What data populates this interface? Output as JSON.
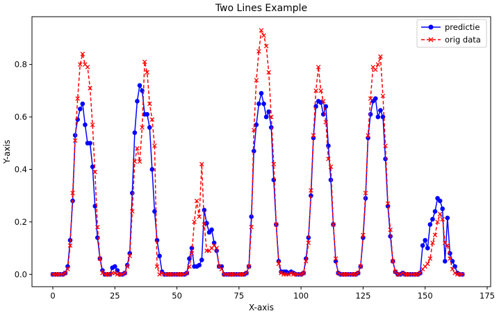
{
  "chart_data": {
    "type": "line",
    "title": "Two Lines Example",
    "xlabel": "X-axis",
    "ylabel": "Y-axis",
    "xlim": [
      -8.4,
      176.4
    ],
    "ylim": [
      -0.047,
      0.982
    ],
    "xticks": [
      0,
      25,
      50,
      75,
      100,
      125,
      150,
      175
    ],
    "yticks": [
      0.0,
      0.2,
      0.4,
      0.6,
      0.8
    ],
    "ytick_labels": [
      "0.0",
      "0.2",
      "0.4",
      "0.6",
      "0.8"
    ],
    "grid": false,
    "legend_position": "top-right",
    "series": [
      {
        "name": "predictie",
        "color": "#0000ff",
        "line_style": "solid",
        "marker": "circle",
        "points": [
          [
            0,
            0
          ],
          [
            1,
            0
          ],
          [
            2,
            0
          ],
          [
            3,
            0
          ],
          [
            4,
            0
          ],
          [
            5,
            0.005
          ],
          [
            6,
            0.03
          ],
          [
            7,
            0.13
          ],
          [
            8,
            0.28
          ],
          [
            9,
            0.53
          ],
          [
            10,
            0.59
          ],
          [
            11,
            0.63
          ],
          [
            12,
            0.65
          ],
          [
            13,
            0.57
          ],
          [
            14,
            0.5
          ],
          [
            15,
            0.5
          ],
          [
            16,
            0.41
          ],
          [
            17,
            0.26
          ],
          [
            18,
            0.14
          ],
          [
            19,
            0.06
          ],
          [
            20,
            0.015
          ],
          [
            21,
            0
          ],
          [
            22,
            0
          ],
          [
            23,
            0
          ],
          [
            24,
            0.025
          ],
          [
            25,
            0.03
          ],
          [
            26,
            0.015
          ],
          [
            27,
            0
          ],
          [
            28,
            0
          ],
          [
            29,
            0.005
          ],
          [
            30,
            0.035
          ],
          [
            31,
            0.08
          ],
          [
            32,
            0.31
          ],
          [
            33,
            0.54
          ],
          [
            34,
            0.66
          ],
          [
            35,
            0.72
          ],
          [
            36,
            0.7
          ],
          [
            37,
            0.61
          ],
          [
            38,
            0.61
          ],
          [
            39,
            0.56
          ],
          [
            40,
            0.4
          ],
          [
            41,
            0.24
          ],
          [
            42,
            0.13
          ],
          [
            43,
            0.07
          ],
          [
            44,
            0.01
          ],
          [
            45,
            0
          ],
          [
            46,
            0
          ],
          [
            47,
            0
          ],
          [
            48,
            0
          ],
          [
            49,
            0
          ],
          [
            50,
            0
          ],
          [
            51,
            0
          ],
          [
            52,
            0
          ],
          [
            53,
            0
          ],
          [
            54,
            0.005
          ],
          [
            55,
            0.06
          ],
          [
            56,
            0.1
          ],
          [
            57,
            0.03
          ],
          [
            58,
            0.03
          ],
          [
            59,
            0.035
          ],
          [
            60,
            0.055
          ],
          [
            61,
            0.245
          ],
          [
            62,
            0.195
          ],
          [
            63,
            0.16
          ],
          [
            64,
            0.17
          ],
          [
            65,
            0.12
          ],
          [
            66,
            0.09
          ],
          [
            67,
            0.03
          ],
          [
            68,
            0.03
          ],
          [
            69,
            0
          ],
          [
            70,
            0
          ],
          [
            71,
            0
          ],
          [
            72,
            0
          ],
          [
            73,
            0
          ],
          [
            74,
            0
          ],
          [
            75,
            0
          ],
          [
            76,
            0
          ],
          [
            77,
            0
          ],
          [
            78,
            0.005
          ],
          [
            79,
            0.03
          ],
          [
            80,
            0.22
          ],
          [
            81,
            0.47
          ],
          [
            82,
            0.57
          ],
          [
            83,
            0.65
          ],
          [
            84,
            0.69
          ],
          [
            85,
            0.65
          ],
          [
            86,
            0.6
          ],
          [
            87,
            0.62
          ],
          [
            88,
            0.56
          ],
          [
            89,
            0.36
          ],
          [
            90,
            0.19
          ],
          [
            91,
            0.05
          ],
          [
            92,
            0.01
          ],
          [
            93,
            0.01
          ],
          [
            94,
            0.01
          ],
          [
            95,
            0.005
          ],
          [
            96,
            0.01
          ],
          [
            97,
            0.005
          ],
          [
            98,
            0
          ],
          [
            99,
            0
          ],
          [
            100,
            0
          ],
          [
            101,
            0.005
          ],
          [
            102,
            0.06
          ],
          [
            103,
            0.14
          ],
          [
            104,
            0.3
          ],
          [
            105,
            0.52
          ],
          [
            106,
            0.64
          ],
          [
            107,
            0.66
          ],
          [
            108,
            0.655
          ],
          [
            109,
            0.61
          ],
          [
            110,
            0.64
          ],
          [
            111,
            0.49
          ],
          [
            112,
            0.36
          ],
          [
            113,
            0.19
          ],
          [
            114,
            0.05
          ],
          [
            115,
            0.005
          ],
          [
            116,
            0
          ],
          [
            117,
            0
          ],
          [
            118,
            0
          ],
          [
            119,
            0
          ],
          [
            120,
            0
          ],
          [
            121,
            0
          ],
          [
            122,
            0
          ],
          [
            123,
            0.005
          ],
          [
            124,
            0.03
          ],
          [
            125,
            0.14
          ],
          [
            126,
            0.29
          ],
          [
            127,
            0.52
          ],
          [
            128,
            0.61
          ],
          [
            129,
            0.66
          ],
          [
            130,
            0.67
          ],
          [
            131,
            0.6
          ],
          [
            132,
            0.625
          ],
          [
            133,
            0.6
          ],
          [
            134,
            0.44
          ],
          [
            135,
            0.26
          ],
          [
            136,
            0.145
          ],
          [
            137,
            0.05
          ],
          [
            138,
            0.01
          ],
          [
            139,
            0
          ],
          [
            140,
            0
          ],
          [
            141,
            0.005
          ],
          [
            142,
            0
          ],
          [
            143,
            0
          ],
          [
            144,
            0
          ],
          [
            145,
            0
          ],
          [
            146,
            0
          ],
          [
            147,
            0
          ],
          [
            148,
            0.005
          ],
          [
            149,
            0.11
          ],
          [
            150,
            0.13
          ],
          [
            151,
            0.1
          ],
          [
            152,
            0.19
          ],
          [
            153,
            0.21
          ],
          [
            154,
            0.24
          ],
          [
            155,
            0.29
          ],
          [
            156,
            0.28
          ],
          [
            157,
            0.25
          ],
          [
            158,
            0.05
          ],
          [
            159,
            0.215
          ],
          [
            160,
            0.08
          ],
          [
            161,
            0.05
          ],
          [
            162,
            0.03
          ],
          [
            163,
            0.005
          ],
          [
            164,
            0
          ],
          [
            165,
            0
          ]
        ]
      },
      {
        "name": "orig data",
        "color": "#ff0000",
        "line_style": "dashed",
        "marker": "x",
        "points": [
          [
            0,
            0
          ],
          [
            1,
            0
          ],
          [
            2,
            0
          ],
          [
            3,
            0
          ],
          [
            4,
            0
          ],
          [
            5,
            0.005
          ],
          [
            6,
            0.02
          ],
          [
            7,
            0.11
          ],
          [
            8,
            0.31
          ],
          [
            9,
            0.51
          ],
          [
            10,
            0.67
          ],
          [
            11,
            0.8
          ],
          [
            12,
            0.84
          ],
          [
            13,
            0.8
          ],
          [
            14,
            0.79
          ],
          [
            15,
            0.71
          ],
          [
            16,
            0.57
          ],
          [
            17,
            0.39
          ],
          [
            18,
            0.18
          ],
          [
            19,
            0.06
          ],
          [
            20,
            0.005
          ],
          [
            21,
            0
          ],
          [
            22,
            0
          ],
          [
            23,
            0
          ],
          [
            24,
            0.005
          ],
          [
            25,
            0.005
          ],
          [
            26,
            0
          ],
          [
            27,
            0
          ],
          [
            28,
            0
          ],
          [
            29,
            0.005
          ],
          [
            30,
            0.03
          ],
          [
            31,
            0.07
          ],
          [
            32,
            0.24
          ],
          [
            33,
            0.43
          ],
          [
            34,
            0.48
          ],
          [
            35,
            0.43
          ],
          [
            36,
            0.56
          ],
          [
            37,
            0.81
          ],
          [
            38,
            0.77
          ],
          [
            39,
            0.65
          ],
          [
            40,
            0.59
          ],
          [
            41,
            0.49
          ],
          [
            42,
            0.03
          ],
          [
            43,
            0
          ],
          [
            44,
            0.005
          ],
          [
            45,
            0
          ],
          [
            46,
            0
          ],
          [
            47,
            0
          ],
          [
            48,
            0
          ],
          [
            49,
            0
          ],
          [
            50,
            0
          ],
          [
            51,
            0
          ],
          [
            52,
            0
          ],
          [
            53,
            0
          ],
          [
            54,
            0.005
          ],
          [
            55,
            0.03
          ],
          [
            56,
            0.08
          ],
          [
            57,
            0.2
          ],
          [
            58,
            0.28
          ],
          [
            59,
            0.22
          ],
          [
            60,
            0.42
          ],
          [
            61,
            0.19
          ],
          [
            62,
            0.09
          ],
          [
            63,
            0.09
          ],
          [
            64,
            0.1
          ],
          [
            65,
            0.11
          ],
          [
            66,
            0.1
          ],
          [
            67,
            0.03
          ],
          [
            68,
            0.02
          ],
          [
            69,
            0
          ],
          [
            70,
            0
          ],
          [
            71,
            0
          ],
          [
            72,
            0
          ],
          [
            73,
            0
          ],
          [
            74,
            0
          ],
          [
            75,
            0
          ],
          [
            76,
            0
          ],
          [
            77,
            0
          ],
          [
            78,
            0.005
          ],
          [
            79,
            0.03
          ],
          [
            80,
            0.18
          ],
          [
            81,
            0.55
          ],
          [
            82,
            0.74
          ],
          [
            83,
            0.85
          ],
          [
            84,
            0.93
          ],
          [
            85,
            0.91
          ],
          [
            86,
            0.87
          ],
          [
            87,
            0.77
          ],
          [
            88,
            0.6
          ],
          [
            89,
            0.42
          ],
          [
            90,
            0.19
          ],
          [
            91,
            0.04
          ],
          [
            92,
            0.005
          ],
          [
            93,
            0
          ],
          [
            94,
            0
          ],
          [
            95,
            0
          ],
          [
            96,
            0.005
          ],
          [
            97,
            0
          ],
          [
            98,
            0
          ],
          [
            99,
            0
          ],
          [
            100,
            0
          ],
          [
            101,
            0.005
          ],
          [
            102,
            0.05
          ],
          [
            103,
            0.12
          ],
          [
            104,
            0.32
          ],
          [
            105,
            0.53
          ],
          [
            106,
            0.7
          ],
          [
            107,
            0.79
          ],
          [
            108,
            0.7
          ],
          [
            109,
            0.66
          ],
          [
            110,
            0.58
          ],
          [
            111,
            0.44
          ],
          [
            112,
            0.41
          ],
          [
            113,
            0.19
          ],
          [
            114,
            0.06
          ],
          [
            115,
            0.005
          ],
          [
            116,
            0
          ],
          [
            117,
            0
          ],
          [
            118,
            0
          ],
          [
            119,
            0
          ],
          [
            120,
            0
          ],
          [
            121,
            0
          ],
          [
            122,
            0
          ],
          [
            123,
            0.005
          ],
          [
            124,
            0.03
          ],
          [
            125,
            0.15
          ],
          [
            126,
            0.31
          ],
          [
            127,
            0.53
          ],
          [
            128,
            0.67
          ],
          [
            129,
            0.79
          ],
          [
            130,
            0.78
          ],
          [
            131,
            0.8
          ],
          [
            132,
            0.83
          ],
          [
            133,
            0.68
          ],
          [
            134,
            0.49
          ],
          [
            135,
            0.27
          ],
          [
            136,
            0.17
          ],
          [
            137,
            0.05
          ],
          [
            138,
            0.01
          ],
          [
            139,
            0
          ],
          [
            140,
            0
          ],
          [
            141,
            0.005
          ],
          [
            142,
            0
          ],
          [
            143,
            0
          ],
          [
            144,
            0
          ],
          [
            145,
            0
          ],
          [
            146,
            0
          ],
          [
            147,
            0
          ],
          [
            148,
            0.005
          ],
          [
            149,
            0.02
          ],
          [
            150,
            0.03
          ],
          [
            151,
            0.04
          ],
          [
            152,
            0.06
          ],
          [
            153,
            0.12
          ],
          [
            154,
            0.15
          ],
          [
            155,
            0.2
          ],
          [
            156,
            0.23
          ],
          [
            157,
            0.21
          ],
          [
            158,
            0.12
          ],
          [
            159,
            0.11
          ],
          [
            160,
            0.06
          ],
          [
            161,
            0.02
          ],
          [
            162,
            0.005
          ],
          [
            163,
            0
          ],
          [
            164,
            0
          ],
          [
            165,
            0
          ]
        ]
      }
    ]
  }
}
